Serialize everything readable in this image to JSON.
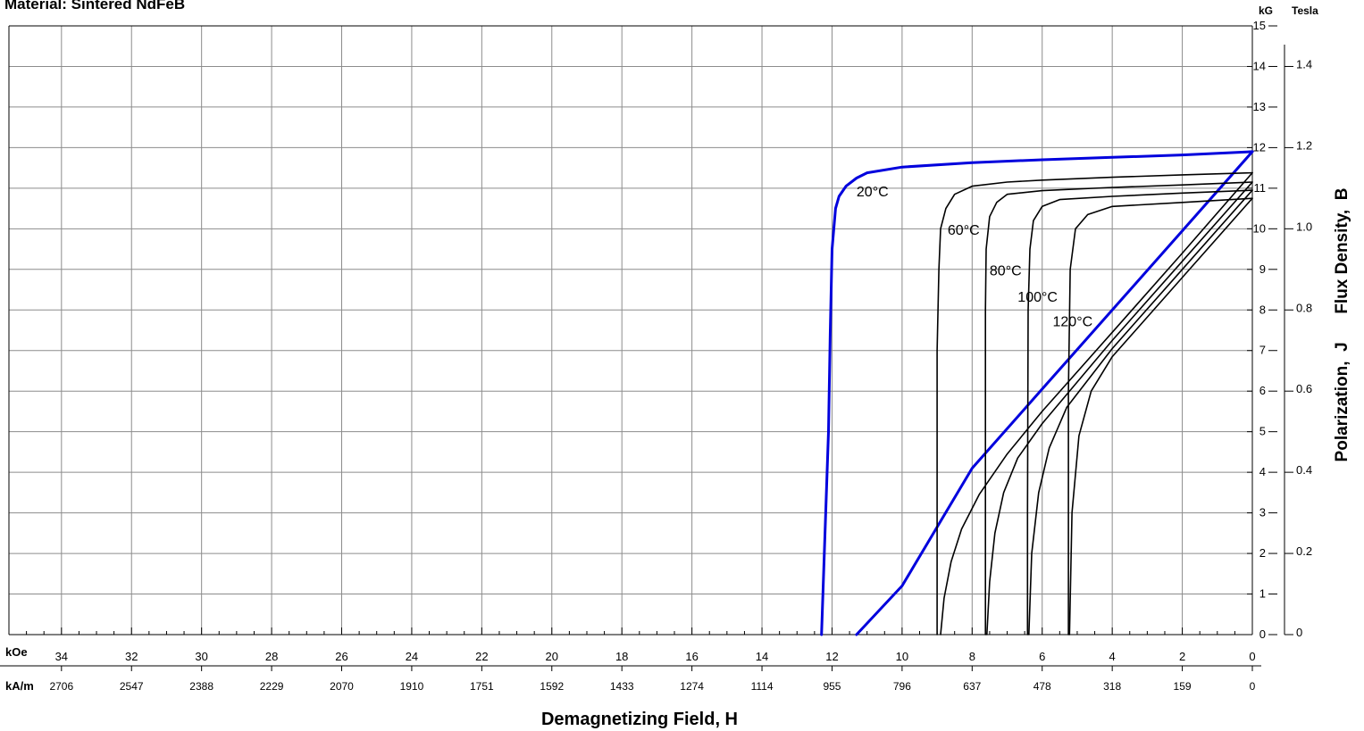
{
  "chart_data": {
    "type": "line",
    "title": "Material: Sintered NdFeB",
    "xlabel": "Demagnetizing Field, H",
    "ylabel": "Polarization,  J      Flux Density,  B",
    "x_unit_koe": "kOe",
    "x_unit_kam": "kA/m",
    "y_unit_kg": "kG",
    "y_unit_tesla": "Tesla",
    "xlim": [
      35.5,
      0
    ],
    "ylim": [
      0,
      15
    ],
    "grid": true,
    "x_ticks_koe": [
      34,
      32,
      30,
      28,
      26,
      24,
      22,
      20,
      18,
      16,
      14,
      12,
      10,
      8,
      6,
      4,
      2,
      0
    ],
    "x_ticks_kam": [
      {
        "v": 34,
        "label": "2706"
      },
      {
        "v": 32,
        "label": "2547"
      },
      {
        "v": 30,
        "label": "2388"
      },
      {
        "v": 28,
        "label": "2229"
      },
      {
        "v": 26,
        "label": "2070"
      },
      {
        "v": 24,
        "label": "1910"
      },
      {
        "v": 22,
        "label": "1751"
      },
      {
        "v": 20,
        "label": "1592"
      },
      {
        "v": 18,
        "label": "1433"
      },
      {
        "v": 16,
        "label": "1274"
      },
      {
        "v": 14,
        "label": "1114"
      },
      {
        "v": 12,
        "label": "955"
      },
      {
        "v": 10,
        "label": "796"
      },
      {
        "v": 8,
        "label": "637"
      },
      {
        "v": 6,
        "label": "478"
      },
      {
        "v": 4,
        "label": "318"
      },
      {
        "v": 2,
        "label": "159"
      },
      {
        "v": 0,
        "label": "0"
      }
    ],
    "y_ticks_kg": [
      0,
      1,
      2,
      3,
      4,
      5,
      6,
      7,
      8,
      9,
      10,
      11,
      12,
      13,
      14,
      15
    ],
    "y_ticks_tesla": [
      {
        "v": 0,
        "label": "0"
      },
      {
        "v": 2,
        "label": "0.2"
      },
      {
        "v": 4,
        "label": "0.4"
      },
      {
        "v": 6,
        "label": "0.6"
      },
      {
        "v": 8,
        "label": "0.8"
      },
      {
        "v": 10,
        "label": "1.0"
      },
      {
        "v": 12,
        "label": "1.2"
      },
      {
        "v": 14,
        "label": "1.4"
      }
    ],
    "series": [
      {
        "name": "20°C",
        "kind": "J",
        "color": "#0000dd",
        "x": [
          0,
          2,
          4,
          6,
          8,
          10,
          11,
          11.3,
          11.6,
          11.8,
          11.9,
          12.0,
          12.05,
          12.1,
          12.3
        ],
        "y": [
          11.9,
          11.82,
          11.76,
          11.7,
          11.63,
          11.52,
          11.38,
          11.25,
          11.05,
          10.8,
          10.5,
          9.5,
          7.5,
          5.0,
          0
        ]
      },
      {
        "name": "",
        "kind": "B",
        "color": "#0000dd",
        "x": [
          0,
          2,
          4,
          6,
          8,
          10,
          11.3
        ],
        "y": [
          11.9,
          9.95,
          8.0,
          6.05,
          4.1,
          1.2,
          0
        ]
      },
      {
        "name": "60°C",
        "kind": "J",
        "color": "#000000",
        "x": [
          0,
          2,
          4,
          6,
          7,
          8,
          8.5,
          8.75,
          8.9,
          8.95,
          9.0,
          9.0,
          9.0
        ],
        "y": [
          11.38,
          11.33,
          11.27,
          11.2,
          11.15,
          11.05,
          10.85,
          10.5,
          10.0,
          9.0,
          7.0,
          3.0,
          0
        ]
      },
      {
        "name": "80°C",
        "kind": "J",
        "color": "#000000",
        "x": [
          0,
          2,
          4,
          6,
          7,
          7.3,
          7.5,
          7.6,
          7.62,
          7.62,
          7.62
        ],
        "y": [
          11.15,
          11.08,
          11.02,
          10.94,
          10.85,
          10.65,
          10.3,
          9.5,
          8.0,
          3.0,
          0
        ]
      },
      {
        "name": "100°C",
        "kind": "J",
        "color": "#000000",
        "x": [
          0,
          2,
          4,
          5.5,
          6.0,
          6.25,
          6.35,
          6.4,
          6.42,
          6.42
        ],
        "y": [
          10.95,
          10.88,
          10.8,
          10.72,
          10.55,
          10.2,
          9.5,
          8.0,
          3.0,
          0
        ]
      },
      {
        "name": "120°C",
        "kind": "J",
        "color": "#000000",
        "x": [
          0,
          2,
          4,
          4.7,
          5.05,
          5.2,
          5.25,
          5.25
        ],
        "y": [
          10.75,
          10.65,
          10.55,
          10.35,
          10.0,
          9.0,
          6.0,
          0
        ]
      },
      {
        "name": "",
        "kind": "B",
        "color": "#000000",
        "x": [
          0,
          2,
          4,
          6,
          7,
          7.8,
          8.3,
          8.6,
          8.8,
          8.9
        ],
        "y": [
          11.38,
          9.4,
          7.45,
          5.5,
          4.45,
          3.45,
          2.6,
          1.8,
          0.9,
          0
        ]
      },
      {
        "name": "",
        "kind": "B",
        "color": "#000000",
        "x": [
          0,
          2,
          4,
          6,
          6.7,
          7.1,
          7.35,
          7.5,
          7.58
        ],
        "y": [
          11.15,
          9.2,
          7.25,
          5.2,
          4.35,
          3.5,
          2.5,
          1.3,
          0
        ]
      },
      {
        "name": "",
        "kind": "B",
        "color": "#000000",
        "x": [
          0,
          2,
          4,
          5.3,
          5.8,
          6.1,
          6.3,
          6.38
        ],
        "y": [
          10.95,
          9.0,
          7.05,
          5.6,
          4.6,
          3.5,
          2.0,
          0
        ]
      },
      {
        "name": "",
        "kind": "B",
        "color": "#000000",
        "x": [
          0,
          2,
          4,
          4.6,
          4.95,
          5.15,
          5.22
        ],
        "y": [
          10.75,
          8.8,
          6.85,
          6.0,
          4.9,
          3.0,
          0
        ]
      }
    ]
  }
}
